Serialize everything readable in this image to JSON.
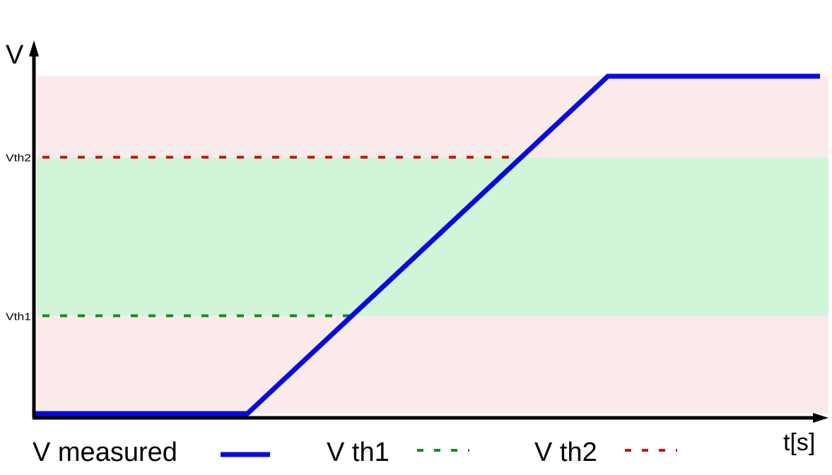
{
  "chart_data": {
    "type": "line",
    "xlabel": "t[s]",
    "ylabel": "V",
    "ylim": [
      0,
      1
    ],
    "x": [
      0,
      300,
      810,
      1110
    ],
    "series": [
      {
        "name": "V measured",
        "x": [
          0,
          300,
          810,
          1110
        ],
        "values": [
          0,
          0,
          1,
          1
        ],
        "color": "#0a0ae0",
        "style": "solid"
      }
    ],
    "thresholds": [
      {
        "name": "V th1",
        "tick_label": "Vth1",
        "value": 0.29,
        "color": "#1a8a1a",
        "style": "dashed"
      },
      {
        "name": "V th2",
        "tick_label": "Vth2",
        "value": 0.76,
        "color": "#d01010",
        "style": "dashed"
      }
    ],
    "bands": [
      {
        "from": 0,
        "to": 0.29,
        "color": "#fbeaea"
      },
      {
        "from": 0.29,
        "to": 0.76,
        "color": "#d0f5d8"
      },
      {
        "from": 0.76,
        "to": 1.0,
        "color": "#fbeaea"
      }
    ],
    "grid": false,
    "legend_position": "bottom"
  }
}
